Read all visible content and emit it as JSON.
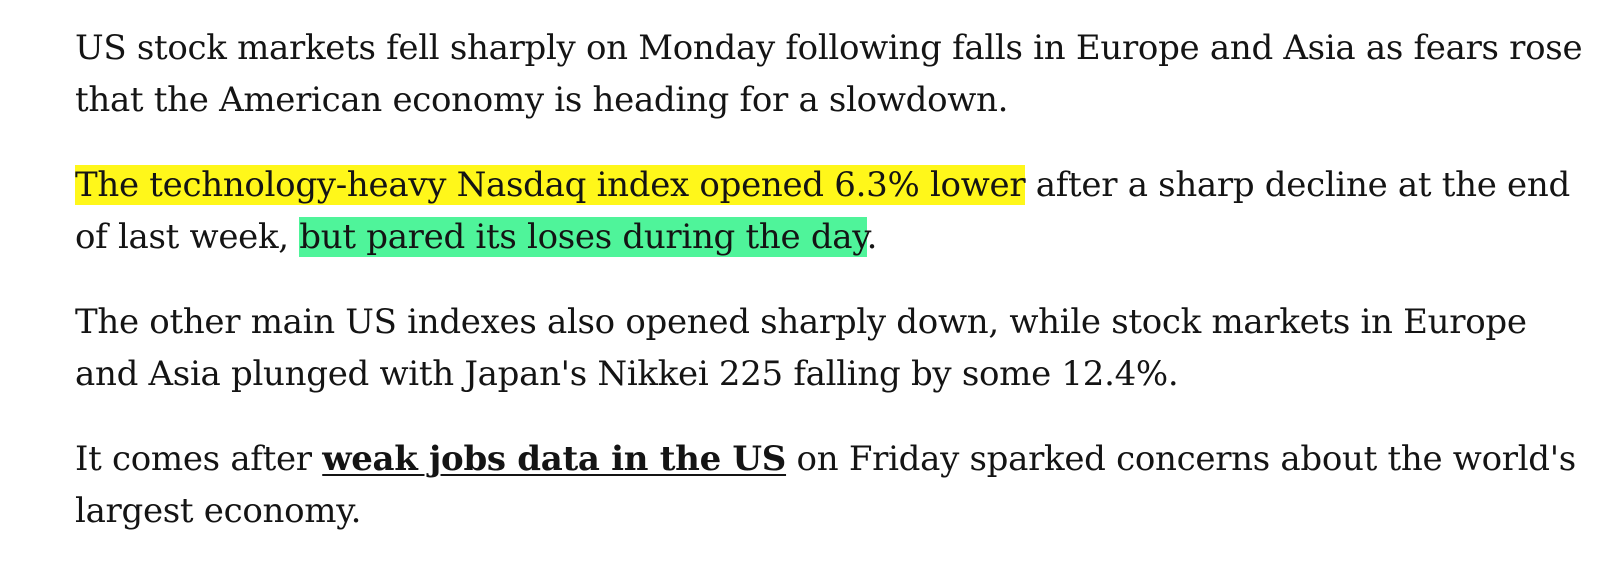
{
  "article": {
    "p1": {
      "text": "US stock markets fell sharply on Monday following falls in Europe and Asia as fears rose that the American economy is heading for a slowdown."
    },
    "p2": {
      "highlight_yellow": "The technology-heavy Nasdaq index opened 6.3% lower",
      "text_a": " after a sharp decline at the end of last week, ",
      "highlight_green": "but pared its loses during the day",
      "text_b": "."
    },
    "p3": {
      "text": "The other main US indexes also opened sharply down, while stock markets in Europe and Asia plunged with Japan's Nikkei 225 falling by some 12.4%."
    },
    "p4": {
      "text_a": "It comes after ",
      "link_text": "weak jobs data in the US",
      "text_b": " on Friday sparked concerns about the world's largest economy."
    }
  },
  "colors": {
    "highlight_yellow": "#fff71a",
    "highlight_green": "#4ff49a",
    "text": "#141414"
  }
}
